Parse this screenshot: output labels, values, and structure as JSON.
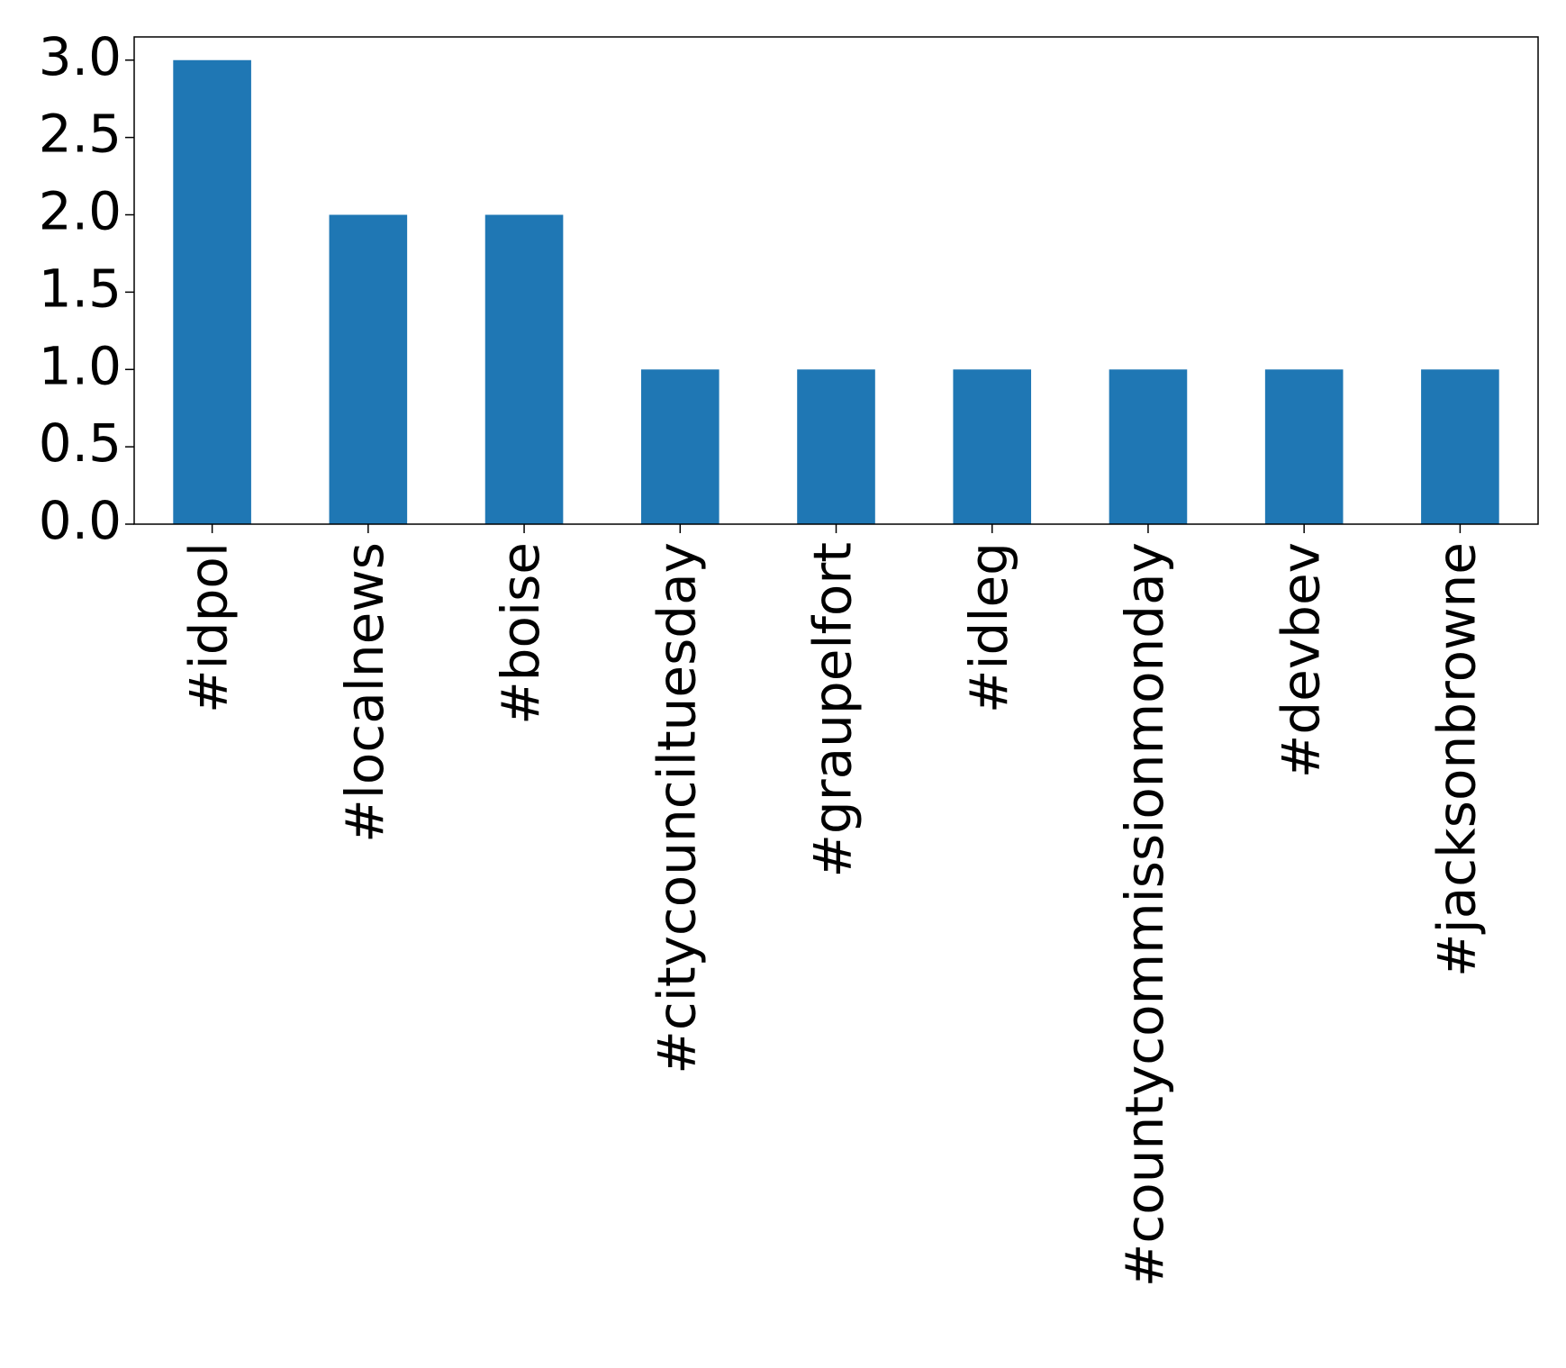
{
  "chart_data": {
    "type": "bar",
    "categories": [
      "#idpol",
      "#localnews",
      "#boise",
      "#citycounciltuesday",
      "#graupelfort",
      "#idleg",
      "#countycommissionmonday",
      "#devbev",
      "#jacksonbrowne"
    ],
    "values": [
      3,
      2,
      2,
      1,
      1,
      1,
      1,
      1,
      1
    ],
    "color": "#1f77b4",
    "ylim": [
      0,
      3.15
    ],
    "yticks": [
      {
        "value": 0,
        "label": "0.0"
      },
      {
        "value": 0.5,
        "label": "0.5"
      },
      {
        "value": 1,
        "label": "1.0"
      },
      {
        "value": 1.5,
        "label": "1.5"
      },
      {
        "value": 2,
        "label": "2.0"
      },
      {
        "value": 2.5,
        "label": "2.5"
      },
      {
        "value": 3,
        "label": "3.0"
      }
    ],
    "grid": false
  }
}
